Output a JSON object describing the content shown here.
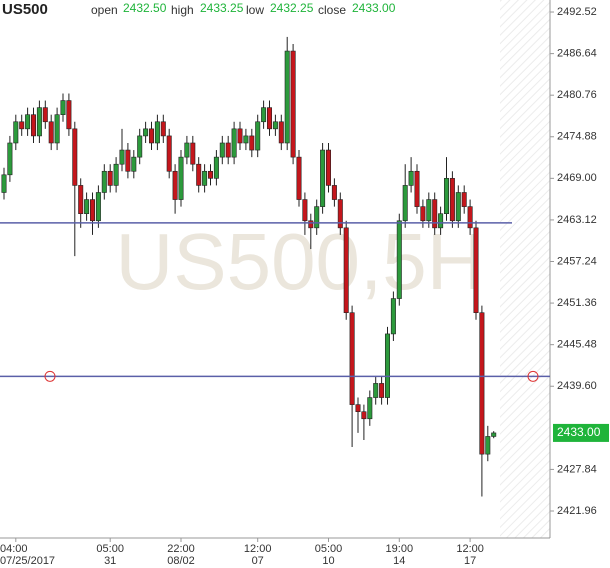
{
  "header": {
    "symbol": "US500",
    "open_label": "open",
    "open": "2432.50",
    "high_label": "high",
    "high": "2433.25",
    "low_label": "low",
    "low": "2432.25",
    "close_label": "close",
    "close": "2433.00"
  },
  "chart_data": {
    "type": "candlestick",
    "watermark": "US500,5H",
    "up_color": "#2c9a3c",
    "down_color": "#c4161c",
    "ylim": [
      2418.14,
      2494.22
    ],
    "yticks": [
      {
        "value": 2492.52,
        "label": "2492.52"
      },
      {
        "value": 2486.64,
        "label": "2486.64"
      },
      {
        "value": 2480.76,
        "label": "2480.76"
      },
      {
        "value": 2474.88,
        "label": "2474.88"
      },
      {
        "value": 2469,
        "label": "2469.00"
      },
      {
        "value": 2463.12,
        "label": "2463.12"
      },
      {
        "value": 2457.24,
        "label": "2457.24"
      },
      {
        "value": 2451.36,
        "label": "2451.36"
      },
      {
        "value": 2445.48,
        "label": "2445.48"
      },
      {
        "value": 2439.6,
        "label": "2439.60"
      },
      {
        "value": 2427.84,
        "label": "2427.84"
      },
      {
        "value": 2421.96,
        "label": "2421.96"
      }
    ],
    "x_time": [
      null,
      null,
      "04:00",
      null,
      null,
      null,
      null,
      null,
      null,
      null,
      null,
      null,
      null,
      null,
      null,
      null,
      null,
      null,
      "05:00",
      null,
      null,
      null,
      null,
      null,
      null,
      null,
      null,
      null,
      null,
      null,
      "22:00",
      null,
      null,
      null,
      null,
      null,
      null,
      null,
      null,
      null,
      null,
      null,
      null,
      "12:00",
      null,
      null,
      null,
      null,
      null,
      null,
      null,
      null,
      null,
      null,
      null,
      "05:00",
      null,
      null,
      null,
      null,
      null,
      null,
      null,
      null,
      null,
      null,
      null,
      "19:00",
      null,
      null,
      null,
      null,
      null,
      null,
      null,
      null,
      null,
      null,
      null,
      "12:00",
      null,
      null,
      null,
      null
    ],
    "x_date": [
      null,
      null,
      "07/25/2017",
      null,
      null,
      null,
      null,
      null,
      null,
      null,
      null,
      null,
      null,
      null,
      null,
      null,
      null,
      null,
      "31",
      null,
      null,
      null,
      null,
      null,
      null,
      null,
      null,
      null,
      null,
      null,
      "08/02",
      null,
      null,
      null,
      null,
      null,
      null,
      null,
      null,
      null,
      null,
      null,
      null,
      "07",
      null,
      null,
      null,
      null,
      null,
      null,
      null,
      null,
      null,
      null,
      null,
      "10",
      null,
      null,
      null,
      null,
      null,
      null,
      null,
      null,
      null,
      null,
      null,
      "14",
      null,
      null,
      null,
      null,
      null,
      null,
      null,
      null,
      null,
      null,
      null,
      "17",
      null,
      null,
      null,
      null
    ],
    "open": [
      2467,
      2469.5,
      2474,
      2477,
      2476,
      2478,
      2475,
      2479,
      2477,
      2474,
      2478,
      2480,
      2476,
      2468,
      2464,
      2466,
      2463,
      2467,
      2470,
      2468,
      2471,
      2473,
      2470,
      2472,
      2475,
      2476,
      2474,
      2477,
      2475,
      2470,
      2466,
      2472,
      2474,
      2471,
      2468,
      2470,
      2469,
      2472,
      2474,
      2472,
      2476,
      2474,
      2475,
      2473,
      2477,
      2479,
      2476,
      2477,
      2474,
      2487,
      2472,
      2466,
      2463,
      2462,
      2465,
      2473,
      2468,
      2466,
      2462,
      2450,
      2437,
      2436,
      2435,
      2438,
      2440,
      2438,
      2447,
      2452,
      2463,
      2468,
      2470,
      2465,
      2463,
      2466,
      2462,
      2464,
      2469,
      2463,
      2467,
      2465,
      2462,
      2450,
      2430,
      2432.5
    ],
    "high": [
      2470.5,
      2475,
      2478,
      2478,
      2479,
      2479,
      2480,
      2480,
      2478,
      2479,
      2481,
      2481,
      2477,
      2469,
      2467,
      2467,
      2468,
      2471,
      2471,
      2472,
      2476,
      2474,
      2473,
      2476,
      2477,
      2477,
      2478,
      2478,
      2476,
      2471,
      2473,
      2475,
      2475,
      2472,
      2471,
      2471,
      2473,
      2475,
      2475,
      2477,
      2477,
      2476,
      2476,
      2478,
      2480,
      2480,
      2478,
      2478,
      2489,
      2488,
      2473,
      2467,
      2464,
      2466,
      2474,
      2474,
      2469,
      2467,
      2463,
      2451,
      2438,
      2437,
      2439,
      2441,
      2441,
      2448,
      2453,
      2464,
      2471,
      2472,
      2471,
      2466,
      2467,
      2467,
      2465,
      2472,
      2470,
      2468,
      2468,
      2466,
      2463,
      2451,
      2434,
      2433.25
    ],
    "low": [
      2466,
      2468.5,
      2473,
      2475,
      2475,
      2474,
      2474,
      2476,
      2473,
      2473,
      2477,
      2475,
      2458,
      2462,
      2463,
      2461,
      2462,
      2466,
      2467,
      2467,
      2470,
      2469,
      2469,
      2471,
      2474,
      2473,
      2473,
      2474,
      2469,
      2464,
      2465,
      2471,
      2470,
      2467,
      2467,
      2468,
      2468,
      2471,
      2471,
      2471,
      2473,
      2473,
      2472,
      2472,
      2476,
      2475,
      2475,
      2473,
      2473,
      2471,
      2465,
      2461,
      2459,
      2461,
      2464,
      2467,
      2465,
      2461,
      2449,
      2431,
      2433,
      2432,
      2434,
      2437,
      2437,
      2437,
      2446,
      2451,
      2462,
      2467,
      2464,
      2462,
      2462,
      2461,
      2461,
      2463,
      2462,
      2462,
      2464,
      2461,
      2449,
      2424,
      2429,
      2432.25
    ],
    "close": [
      2469.5,
      2474,
      2477,
      2476,
      2478,
      2475,
      2479,
      2477,
      2474,
      2478,
      2480,
      2476,
      2468,
      2464,
      2466,
      2463,
      2467,
      2470,
      2468,
      2471,
      2473,
      2470,
      2472,
      2475,
      2476,
      2474,
      2477,
      2475,
      2470,
      2466,
      2472,
      2474,
      2471,
      2468,
      2470,
      2469,
      2472,
      2474,
      2472,
      2476,
      2474,
      2475,
      2473,
      2477,
      2479,
      2476,
      2477,
      2474,
      2487,
      2472,
      2466,
      2463,
      2462,
      2465,
      2473,
      2468,
      2466,
      2462,
      2450,
      2437,
      2436,
      2435,
      2438,
      2440,
      2438,
      2447,
      2452,
      2463,
      2468,
      2470,
      2465,
      2463,
      2466,
      2462,
      2464,
      2469,
      2463,
      2467,
      2465,
      2462,
      2450,
      2430,
      2432.5,
      2433
    ],
    "hlines": [
      2462.7,
      2441.0
    ],
    "hline_color": "#5a5fa8",
    "last_label": "2433.00",
    "last_color": "#1fb43a"
  }
}
